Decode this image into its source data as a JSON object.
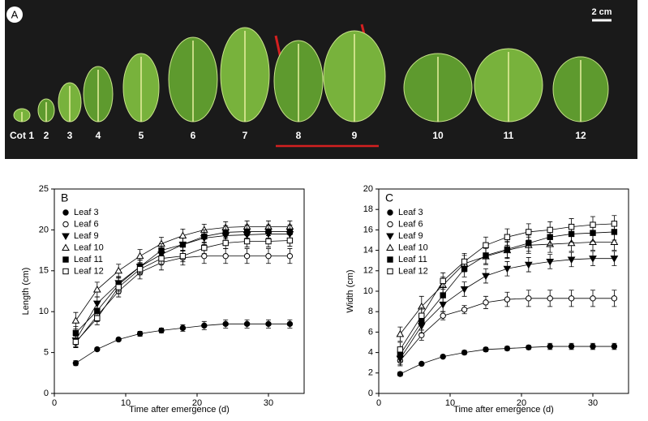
{
  "photo": {
    "panel_label": "A",
    "scale": "2 cm",
    "leaf_labels": [
      "Cot 1",
      "2",
      "3",
      "4",
      "5",
      "6",
      "7",
      "8",
      "9",
      "10",
      "11",
      "12"
    ]
  },
  "chart_data": [
    {
      "type": "line",
      "panel_label": "B",
      "x_label": "Time after emergence (d)",
      "y_label": "Length (cm)",
      "x": [
        3,
        6,
        9,
        12,
        15,
        18,
        21,
        24,
        27,
        30,
        33
      ],
      "xlim": [
        0,
        35
      ],
      "xticks": [
        0,
        10,
        20,
        30
      ],
      "ylim": [
        0,
        25
      ],
      "yticks": [
        0,
        5,
        10,
        15,
        20,
        25
      ],
      "series": [
        {
          "name": "Leaf 3",
          "color": "#000",
          "marker": "circle",
          "filled": true,
          "values": [
            3.7,
            5.4,
            6.6,
            7.3,
            7.7,
            8.0,
            8.3,
            8.5,
            8.5,
            8.5,
            8.5
          ],
          "errors": [
            0.3,
            0.2,
            0.2,
            0.3,
            0.3,
            0.4,
            0.5,
            0.5,
            0.5,
            0.5,
            0.5
          ]
        },
        {
          "name": "Leaf 6",
          "color": "#000",
          "marker": "circle",
          "filled": false,
          "values": [
            6.2,
            9.5,
            12.5,
            14.8,
            16.0,
            16.6,
            16.8,
            16.8,
            16.8,
            16.8,
            16.8
          ],
          "errors": [
            0.6,
            0.7,
            0.7,
            0.8,
            0.9,
            0.9,
            0.9,
            0.9,
            0.9,
            0.9,
            0.9
          ]
        },
        {
          "name": "Leaf 9",
          "color": "#000",
          "marker": "triangle-down",
          "filled": true,
          "values": [
            6.5,
            11.0,
            13.5,
            15.5,
            17.0,
            18.2,
            19.0,
            19.3,
            19.4,
            19.5,
            19.5
          ],
          "errors": [
            0.8,
            0.8,
            0.8,
            0.8,
            0.8,
            0.8,
            0.8,
            0.8,
            0.8,
            0.8,
            0.8
          ]
        },
        {
          "name": "Leaf 10",
          "color": "#000",
          "marker": "triangle-up",
          "filled": false,
          "values": [
            8.9,
            12.7,
            15.0,
            16.8,
            18.3,
            19.3,
            20.0,
            20.3,
            20.4,
            20.4,
            20.4
          ],
          "errors": [
            1.0,
            0.9,
            0.8,
            0.8,
            0.8,
            0.8,
            0.7,
            0.7,
            0.7,
            0.7,
            0.7
          ]
        },
        {
          "name": "Leaf 11",
          "color": "#000",
          "marker": "square",
          "filled": true,
          "values": [
            7.4,
            10.1,
            13.3,
            15.5,
            17.5,
            18.2,
            19.2,
            19.7,
            19.8,
            19.8,
            19.8
          ],
          "errors": [
            0.8,
            0.9,
            0.8,
            0.8,
            0.8,
            0.8,
            0.8,
            0.8,
            0.8,
            0.8,
            0.8
          ]
        },
        {
          "name": "Leaf 12",
          "color": "#000",
          "marker": "square",
          "filled": false,
          "values": [
            6.3,
            9.2,
            13.0,
            15.2,
            16.5,
            16.8,
            17.8,
            18.4,
            18.6,
            18.6,
            18.7
          ],
          "errors": [
            0.7,
            0.8,
            0.8,
            0.7,
            0.7,
            0.7,
            0.7,
            0.7,
            0.7,
            0.7,
            0.7
          ]
        }
      ]
    },
    {
      "type": "line",
      "panel_label": "C",
      "x_label": "Time after emergence (d)",
      "y_label": "Width (cm)",
      "x": [
        3,
        6,
        9,
        12,
        15,
        18,
        21,
        24,
        27,
        30,
        33
      ],
      "xlim": [
        0,
        35
      ],
      "xticks": [
        0,
        10,
        20,
        30
      ],
      "ylim": [
        0,
        20
      ],
      "yticks": [
        0,
        2,
        4,
        6,
        8,
        10,
        12,
        14,
        16,
        18,
        20
      ],
      "series": [
        {
          "name": "Leaf 3",
          "color": "#000",
          "marker": "circle",
          "filled": true,
          "values": [
            1.9,
            2.9,
            3.6,
            4.0,
            4.3,
            4.4,
            4.5,
            4.6,
            4.6,
            4.6,
            4.6
          ],
          "errors": [
            0.2,
            0.1,
            0.1,
            0.2,
            0.2,
            0.2,
            0.2,
            0.3,
            0.3,
            0.3,
            0.3
          ]
        },
        {
          "name": "Leaf 6",
          "color": "#000",
          "marker": "circle",
          "filled": false,
          "values": [
            3.2,
            5.7,
            7.6,
            8.2,
            8.9,
            9.2,
            9.3,
            9.3,
            9.3,
            9.3,
            9.3
          ],
          "errors": [
            0.5,
            0.5,
            0.4,
            0.4,
            0.6,
            0.7,
            0.8,
            0.8,
            0.8,
            0.8,
            0.8
          ]
        },
        {
          "name": "Leaf 9",
          "color": "#000",
          "marker": "triangle-down",
          "filled": true,
          "values": [
            3.4,
            6.6,
            8.7,
            10.2,
            11.5,
            12.2,
            12.6,
            12.9,
            13.1,
            13.2,
            13.2
          ],
          "errors": [
            0.6,
            0.7,
            0.7,
            0.7,
            0.7,
            0.7,
            0.7,
            0.7,
            0.7,
            0.7,
            0.7
          ]
        },
        {
          "name": "Leaf 10",
          "color": "#000",
          "marker": "triangle-up",
          "filled": false,
          "values": [
            5.8,
            8.5,
            10.6,
            12.7,
            13.4,
            14.0,
            14.5,
            14.6,
            14.7,
            14.8,
            14.8
          ],
          "errors": [
            0.7,
            1.0,
            0.8,
            0.8,
            0.8,
            0.8,
            0.8,
            0.8,
            0.8,
            0.8,
            0.8
          ]
        },
        {
          "name": "Leaf 11",
          "color": "#000",
          "marker": "square",
          "filled": true,
          "values": [
            3.8,
            7.0,
            9.6,
            12.2,
            13.5,
            14.1,
            14.7,
            15.3,
            15.6,
            15.7,
            15.8
          ],
          "errors": [
            0.7,
            0.8,
            0.8,
            0.8,
            0.8,
            0.8,
            0.8,
            0.8,
            0.8,
            0.8,
            0.8
          ]
        },
        {
          "name": "Leaf 12",
          "color": "#000",
          "marker": "square",
          "filled": false,
          "values": [
            4.3,
            7.6,
            11.0,
            12.9,
            14.5,
            15.3,
            15.8,
            16.0,
            16.3,
            16.5,
            16.6
          ],
          "errors": [
            0.7,
            0.8,
            0.8,
            0.8,
            0.8,
            0.8,
            0.8,
            0.8,
            0.8,
            0.8,
            0.8
          ]
        }
      ]
    }
  ]
}
